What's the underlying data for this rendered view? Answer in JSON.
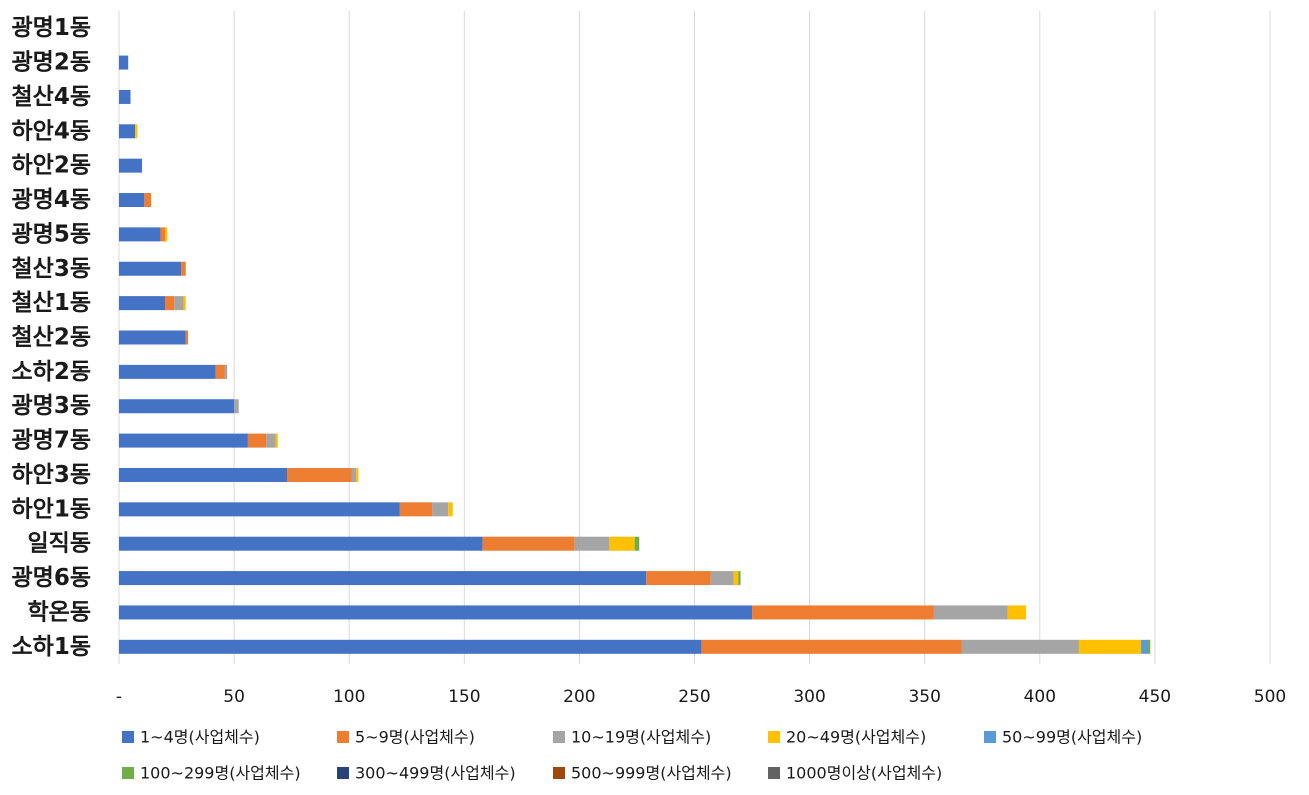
{
  "chart_data": {
    "type": "bar",
    "orientation": "horizontal",
    "stacked": true,
    "categories": [
      "소하1동",
      "학온동",
      "광명6동",
      "일직동",
      "하안1동",
      "하안3동",
      "광명7동",
      "광명3동",
      "소하2동",
      "철산2동",
      "철산1동",
      "철산3동",
      "광명5동",
      "광명4동",
      "하안2동",
      "하안4동",
      "철산4동",
      "광명2동",
      "광명1동"
    ],
    "series": [
      {
        "name": "1~4명(사업체수)",
        "color": "#4472C4",
        "values": [
          253,
          275,
          229,
          158,
          122,
          73,
          56,
          50,
          42,
          29,
          20,
          27,
          18,
          11,
          10,
          7,
          5,
          4,
          0
        ]
      },
      {
        "name": "5~9명(사업체수)",
        "color": "#ED7D31",
        "values": [
          113,
          79,
          28,
          40,
          14,
          28,
          8,
          0,
          4,
          1,
          4,
          2,
          2,
          3,
          0,
          0,
          0,
          0,
          0
        ]
      },
      {
        "name": "10~19명(사업체수)",
        "color": "#A5A5A5",
        "values": [
          51,
          32,
          10,
          15,
          7,
          2,
          4,
          2,
          1,
          0,
          4,
          0,
          0,
          0,
          0,
          0,
          0,
          0,
          0
        ]
      },
      {
        "name": "20~49명(사업체수)",
        "color": "#FFC000",
        "values": [
          27,
          8,
          2,
          11,
          2,
          1,
          1,
          0,
          0,
          0,
          1,
          0,
          1,
          0,
          0,
          1,
          0,
          0,
          0
        ]
      },
      {
        "name": "50~99명(사업체수)",
        "color": "#5B9BD5",
        "values": [
          3,
          0,
          0,
          0,
          0,
          0,
          0,
          0,
          0,
          0,
          0,
          0,
          0,
          0,
          0,
          0,
          0,
          0,
          0
        ]
      },
      {
        "name": "100~299명(사업체수)",
        "color": "#70AD47",
        "values": [
          1,
          0,
          1,
          2,
          0,
          0,
          0,
          0,
          0,
          0,
          0,
          0,
          0,
          0,
          0,
          0,
          0,
          0,
          0
        ]
      },
      {
        "name": "300~499명(사업체수)",
        "color": "#264478",
        "values": [
          0,
          0,
          0,
          0,
          0,
          0,
          0,
          0,
          0,
          0,
          0,
          0,
          0,
          0,
          0,
          0,
          0,
          0,
          0
        ]
      },
      {
        "name": "500~999명(사업체수)",
        "color": "#9E480E",
        "values": [
          0,
          0,
          0,
          0,
          0,
          0,
          0,
          0,
          0,
          0,
          0,
          0,
          0,
          0,
          0,
          0,
          0,
          0,
          0
        ]
      },
      {
        "name": "1000명이상(사업체수)",
        "color": "#636363",
        "values": [
          0,
          0,
          0,
          0,
          0,
          0,
          0,
          0,
          0,
          0,
          0,
          0,
          0,
          0,
          0,
          0,
          0,
          0,
          0
        ]
      }
    ],
    "x_ticks": [
      "-",
      "50",
      "100",
      "150",
      "200",
      "250",
      "300",
      "350",
      "400",
      "450",
      "500"
    ],
    "xlim": [
      0,
      500
    ],
    "grid": true,
    "legend_position": "bottom",
    "title": "",
    "xlabel": "",
    "ylabel": ""
  }
}
